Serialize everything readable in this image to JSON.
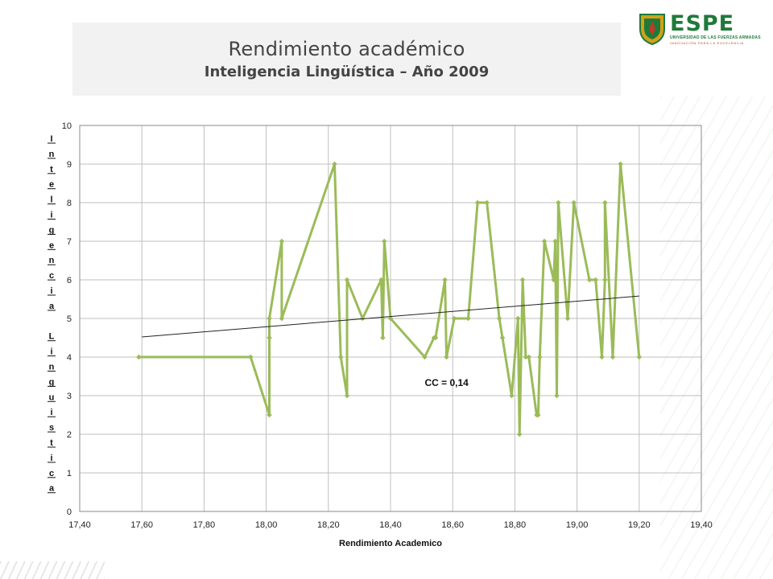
{
  "header": {
    "title": "Rendimiento académico",
    "subtitle": "Inteligencia Lingüística – Año 2009"
  },
  "logo": {
    "name": "ESPE",
    "line1": "UNIVERSIDAD DE LAS FUERZAS ARMADAS",
    "line2": "INNOVACIÓN PARA LA EXCELENCIA",
    "colors": {
      "green": "#1f7a3a",
      "red": "#c0392b",
      "gold": "#d4a017"
    }
  },
  "chart_data": {
    "type": "line",
    "title": "",
    "xlabel": "Rendimiento Academico",
    "ylabel": "Inteligencia Linguistica",
    "ylabel_letters": [
      "I",
      "n",
      "t",
      "e",
      "l",
      "i",
      "g",
      "e",
      "n",
      "c",
      "i",
      "a",
      "",
      "L",
      "i",
      "n",
      "g",
      "u",
      "i",
      "s",
      "t",
      "i",
      "c",
      "a"
    ],
    "xlim": [
      17.4,
      19.4
    ],
    "ylim": [
      0,
      10
    ],
    "x_tick_labels": [
      "17,40",
      "17,60",
      "17,80",
      "18,00",
      "18,20",
      "18,40",
      "18,60",
      "18,80",
      "19,00",
      "19,20",
      "19,40"
    ],
    "y_tick_labels": [
      "0",
      "1",
      "2",
      "3",
      "4",
      "5",
      "6",
      "7",
      "8",
      "9",
      "10"
    ],
    "grid": true,
    "legend": "none",
    "annotation": "CC = 0,14",
    "series": [
      {
        "color": "#9bbb59",
        "marker": "diamond",
        "x": [
          17.59,
          17.95,
          18.01,
          18.01,
          18.01,
          18.05,
          18.05,
          18.22,
          18.24,
          18.26,
          18.26,
          18.31,
          18.37,
          18.375,
          18.38,
          18.4,
          18.51,
          18.54,
          18.545,
          18.575,
          18.58,
          18.605,
          18.65,
          18.68,
          18.71,
          18.75,
          18.76,
          18.79,
          18.81,
          18.815,
          18.825,
          18.835,
          18.845,
          18.87,
          18.875,
          18.88,
          18.895,
          18.925,
          18.93,
          18.935,
          18.94,
          18.97,
          18.99,
          19.04,
          19.06,
          19.08,
          19.09,
          19.09,
          19.115,
          19.14,
          19.2
        ],
        "y": [
          4,
          4,
          2.5,
          4.5,
          5,
          7,
          5,
          9,
          4,
          3,
          6,
          5,
          6,
          4.5,
          7,
          5,
          4,
          4.5,
          4.5,
          6,
          4,
          5,
          5,
          8,
          8,
          5,
          4.5,
          3,
          5,
          2,
          6,
          4,
          4,
          2.5,
          2.5,
          4,
          7,
          6,
          7,
          3,
          8,
          5,
          8,
          6,
          6,
          4,
          6,
          8,
          4,
          9,
          4
        ]
      }
    ],
    "trendline": {
      "color": "#222222",
      "x": [
        17.6,
        19.2
      ],
      "y": [
        4.52,
        5.58
      ]
    }
  }
}
